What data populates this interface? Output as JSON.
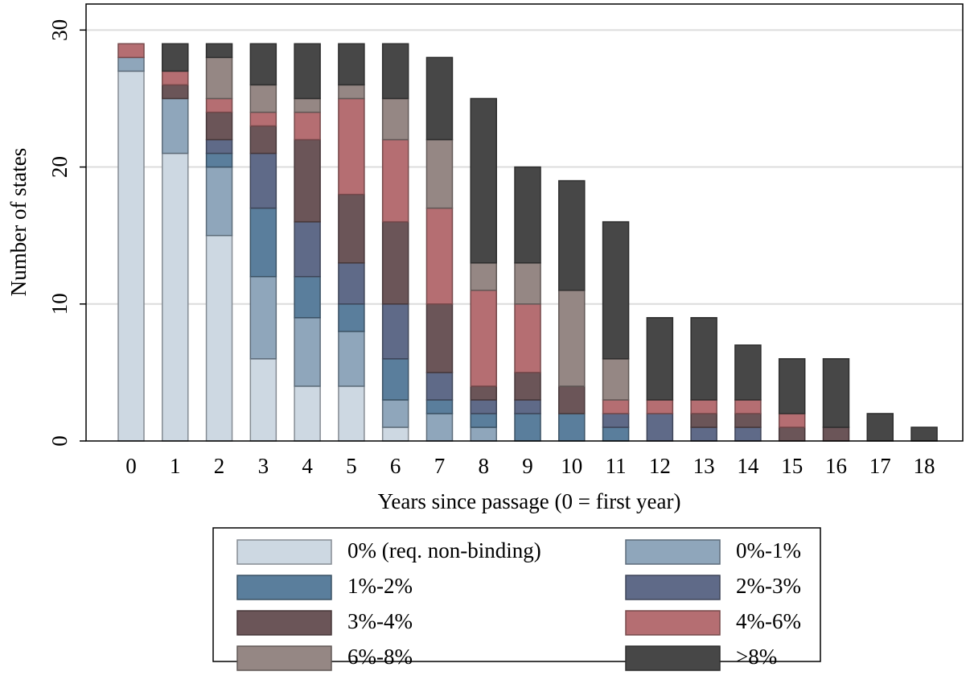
{
  "chart_data": {
    "type": "bar",
    "stacked": true,
    "xlabel": "Years since passage (0 = first year)",
    "ylabel": "Number of states",
    "categories": [
      "0",
      "1",
      "2",
      "3",
      "4",
      "5",
      "6",
      "7",
      "8",
      "9",
      "10",
      "11",
      "12",
      "13",
      "14",
      "15",
      "16",
      "17",
      "18"
    ],
    "ylim": [
      0,
      31.9
    ],
    "yticks": [
      0,
      10,
      20,
      30
    ],
    "grid": true,
    "legend": "bottom",
    "series": [
      {
        "name": "0% (req. non-binding)",
        "color": "#cdd8e2",
        "values": [
          27,
          21,
          15,
          6,
          4,
          4,
          1,
          0,
          0,
          0,
          0,
          0,
          0,
          0,
          0,
          0,
          0,
          0,
          0
        ]
      },
      {
        "name": "0%-1%",
        "color": "#8fa6bb",
        "values": [
          1,
          4,
          5,
          6,
          5,
          4,
          2,
          2,
          1,
          0,
          0,
          0,
          0,
          0,
          0,
          0,
          0,
          0,
          0
        ]
      },
      {
        "name": "1%-2%",
        "color": "#5a7e9c",
        "values": [
          0,
          0,
          1,
          5,
          3,
          2,
          3,
          1,
          1,
          2,
          2,
          1,
          0,
          0,
          0,
          0,
          0,
          0,
          0
        ]
      },
      {
        "name": "2%-3%",
        "color": "#5f6a88",
        "values": [
          0,
          0,
          1,
          4,
          4,
          3,
          4,
          2,
          1,
          1,
          0,
          1,
          2,
          1,
          1,
          0,
          0,
          0,
          0
        ]
      },
      {
        "name": "3%-4%",
        "color": "#6b5558",
        "values": [
          0,
          1,
          2,
          2,
          6,
          5,
          6,
          5,
          1,
          2,
          2,
          0,
          0,
          1,
          1,
          1,
          1,
          0,
          0
        ]
      },
      {
        "name": "4%-6%",
        "color": "#b56e72",
        "values": [
          1,
          1,
          1,
          1,
          2,
          7,
          6,
          7,
          7,
          5,
          0,
          1,
          1,
          1,
          1,
          1,
          0,
          0,
          0
        ]
      },
      {
        "name": "6%-8%",
        "color": "#958784",
        "values": [
          0,
          0,
          3,
          2,
          1,
          1,
          3,
          5,
          2,
          3,
          7,
          3,
          0,
          0,
          0,
          0,
          0,
          0,
          0
        ]
      },
      {
        "name": ">8%",
        "color": "#474747",
        "values": [
          0,
          2,
          1,
          3,
          4,
          3,
          4,
          6,
          12,
          7,
          8,
          10,
          6,
          6,
          4,
          4,
          5,
          2,
          1
        ]
      }
    ]
  }
}
